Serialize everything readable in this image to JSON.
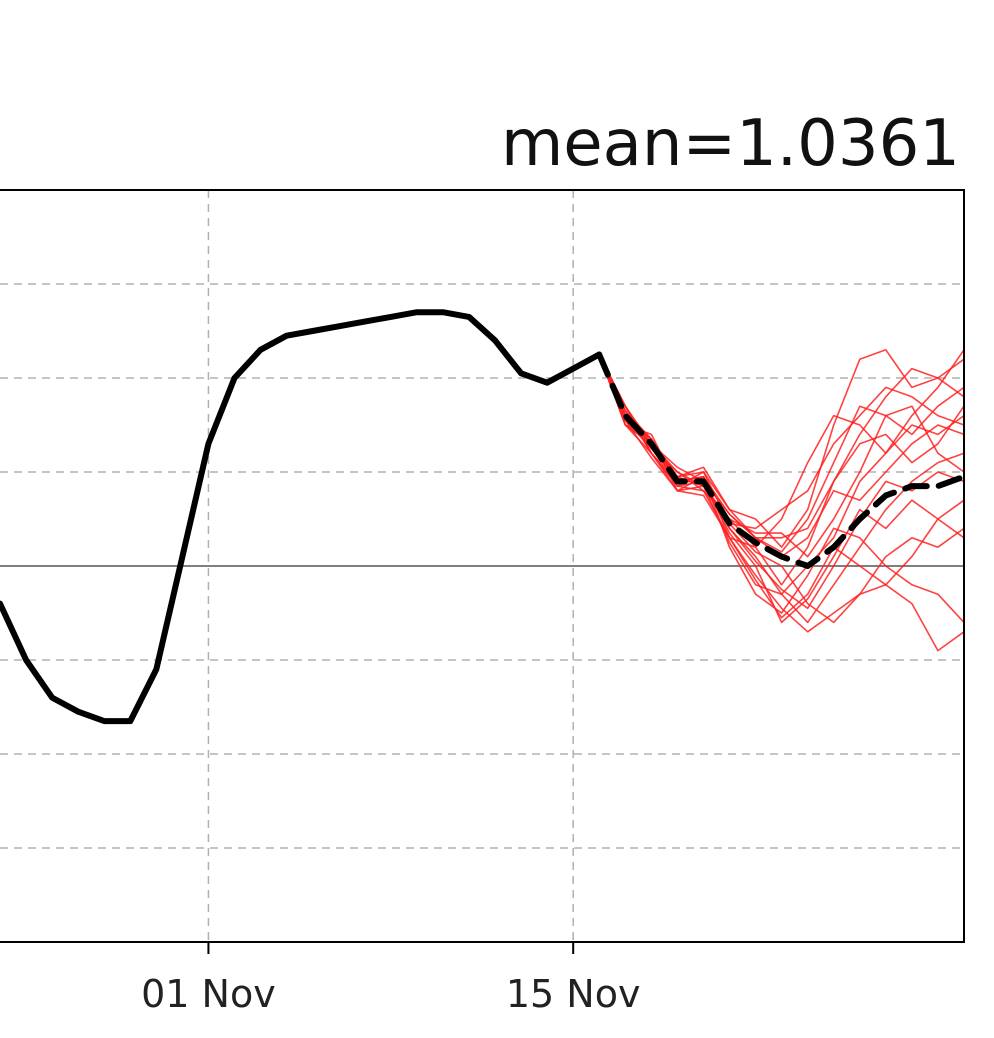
{
  "chart_data": {
    "type": "line",
    "title": "mean=1.0361",
    "xlabel": "",
    "ylabel": "",
    "x_ticks": [
      "01 Nov",
      "15 Nov"
    ],
    "xlim": [
      "2023-10-24",
      "2023-11-30"
    ],
    "ylim": [
      -4,
      4
    ],
    "grid": true,
    "grid_style": "dashed",
    "zero_line": 0,
    "colors": {
      "observed": "#000000",
      "members": "#ff2020",
      "ensemble_mean": "#000000"
    },
    "series": [
      {
        "role": "observed",
        "x": [
          "2023-10-24",
          "2023-10-25",
          "2023-10-26",
          "2023-10-27",
          "2023-10-28",
          "2023-10-29",
          "2023-10-30",
          "2023-10-31",
          "2023-11-01",
          "2023-11-02",
          "2023-11-03",
          "2023-11-04",
          "2023-11-05",
          "2023-11-06",
          "2023-11-07",
          "2023-11-08",
          "2023-11-09",
          "2023-11-10",
          "2023-11-11",
          "2023-11-12",
          "2023-11-13",
          "2023-11-14",
          "2023-11-15",
          "2023-11-16"
        ],
        "y": [
          -0.4,
          -1.0,
          -1.4,
          -1.55,
          -1.65,
          -1.65,
          -1.1,
          0.1,
          1.3,
          2.0,
          2.3,
          2.45,
          2.5,
          2.55,
          2.6,
          2.65,
          2.7,
          2.7,
          2.65,
          2.4,
          2.05,
          1.95,
          2.1,
          2.25
        ]
      },
      {
        "role": "ensemble_mean",
        "x": [
          "2023-11-16",
          "2023-11-17",
          "2023-11-18",
          "2023-11-19",
          "2023-11-20",
          "2023-11-21",
          "2023-11-22",
          "2023-11-23",
          "2023-11-24",
          "2023-11-25",
          "2023-11-26",
          "2023-11-27",
          "2023-11-28",
          "2023-11-29",
          "2023-11-30"
        ],
        "y": [
          2.25,
          1.6,
          1.3,
          0.9,
          0.9,
          0.45,
          0.25,
          0.1,
          0.0,
          0.2,
          0.5,
          0.75,
          0.85,
          0.85,
          0.95
        ]
      }
    ],
    "members": [
      {
        "x_start": "2023-11-16",
        "y": [
          2.25,
          1.5,
          1.2,
          0.85,
          0.9,
          0.4,
          0.1,
          -0.3,
          -0.6,
          -0.2,
          0.2,
          0.6,
          0.9,
          1.1,
          1.2
        ]
      },
      {
        "x_start": "2023-11-16",
        "y": [
          2.25,
          1.7,
          1.3,
          0.95,
          1.0,
          0.6,
          0.3,
          0.3,
          0.4,
          0.9,
          1.4,
          1.8,
          2.1,
          2.0,
          2.2
        ]
      },
      {
        "x_start": "2023-11-16",
        "y": [
          2.25,
          1.6,
          1.35,
          0.8,
          0.75,
          0.3,
          -0.1,
          -0.45,
          -0.7,
          -0.5,
          -0.3,
          -0.2,
          -0.4,
          -0.9,
          -0.7
        ]
      },
      {
        "x_start": "2023-11-16",
        "y": [
          2.25,
          1.55,
          1.25,
          1.0,
          0.85,
          0.45,
          0.4,
          0.6,
          0.8,
          1.3,
          1.6,
          1.9,
          1.8,
          1.6,
          1.5
        ]
      },
      {
        "x_start": "2023-11-16",
        "y": [
          2.25,
          1.65,
          1.2,
          0.9,
          0.95,
          0.2,
          -0.3,
          -0.5,
          -0.1,
          0.4,
          0.3,
          0.0,
          -0.2,
          -0.3,
          -0.6
        ]
      },
      {
        "x_start": "2023-11-16",
        "y": [
          2.25,
          1.5,
          1.4,
          0.85,
          0.8,
          0.5,
          0.2,
          -0.2,
          0.2,
          0.9,
          1.3,
          1.4,
          1.1,
          1.3,
          1.7
        ]
      },
      {
        "x_start": "2023-11-16",
        "y": [
          2.25,
          1.7,
          1.25,
          0.95,
          1.05,
          0.6,
          0.5,
          0.2,
          0.6,
          1.5,
          2.2,
          2.3,
          1.9,
          2.0,
          1.8
        ]
      },
      {
        "x_start": "2023-11-16",
        "y": [
          2.25,
          1.6,
          1.3,
          1.05,
          0.9,
          0.35,
          0.0,
          -0.6,
          -0.35,
          0.1,
          0.6,
          0.4,
          0.7,
          0.5,
          0.3
        ]
      },
      {
        "x_start": "2023-11-16",
        "y": [
          2.25,
          1.55,
          1.15,
          0.8,
          0.85,
          0.25,
          -0.2,
          -0.3,
          0.0,
          0.3,
          0.9,
          1.2,
          1.5,
          1.4,
          1.6
        ]
      },
      {
        "x_start": "2023-11-16",
        "y": [
          2.25,
          1.65,
          1.35,
          0.9,
          0.95,
          0.55,
          0.3,
          0.1,
          0.3,
          0.8,
          0.7,
          1.0,
          1.3,
          1.5,
          1.4
        ]
      },
      {
        "x_start": "2023-11-16",
        "y": [
          2.25,
          1.7,
          1.2,
          0.85,
          1.0,
          0.45,
          0.15,
          0.0,
          -0.4,
          -0.6,
          -0.3,
          0.1,
          0.3,
          0.2,
          0.4
        ]
      },
      {
        "x_start": "2023-11-16",
        "y": [
          2.25,
          1.5,
          1.3,
          1.0,
          0.8,
          0.3,
          0.2,
          0.5,
          1.1,
          1.6,
          1.5,
          1.2,
          1.6,
          1.9,
          2.3
        ]
      },
      {
        "x_start": "2023-11-16",
        "y": [
          2.25,
          1.6,
          1.25,
          0.9,
          0.9,
          0.4,
          0.05,
          -0.25,
          -0.45,
          0.0,
          0.5,
          0.9,
          0.8,
          1.0,
          0.9
        ]
      },
      {
        "x_start": "2023-11-16",
        "y": [
          2.25,
          1.55,
          1.35,
          0.95,
          0.85,
          0.5,
          0.35,
          0.35,
          0.1,
          0.5,
          1.0,
          1.6,
          1.7,
          1.2,
          1.0
        ]
      },
      {
        "x_start": "2023-11-16",
        "y": [
          2.25,
          1.65,
          1.2,
          0.8,
          0.95,
          0.3,
          -0.15,
          -0.55,
          -0.3,
          0.2,
          0.0,
          -0.2,
          0.1,
          0.5,
          0.7
        ]
      },
      {
        "x_start": "2023-11-16",
        "y": [
          2.25,
          1.6,
          1.3,
          0.9,
          0.9,
          0.55,
          0.3,
          0.15,
          0.5,
          1.1,
          1.7,
          1.6,
          1.4,
          1.7,
          1.9
        ]
      }
    ]
  }
}
